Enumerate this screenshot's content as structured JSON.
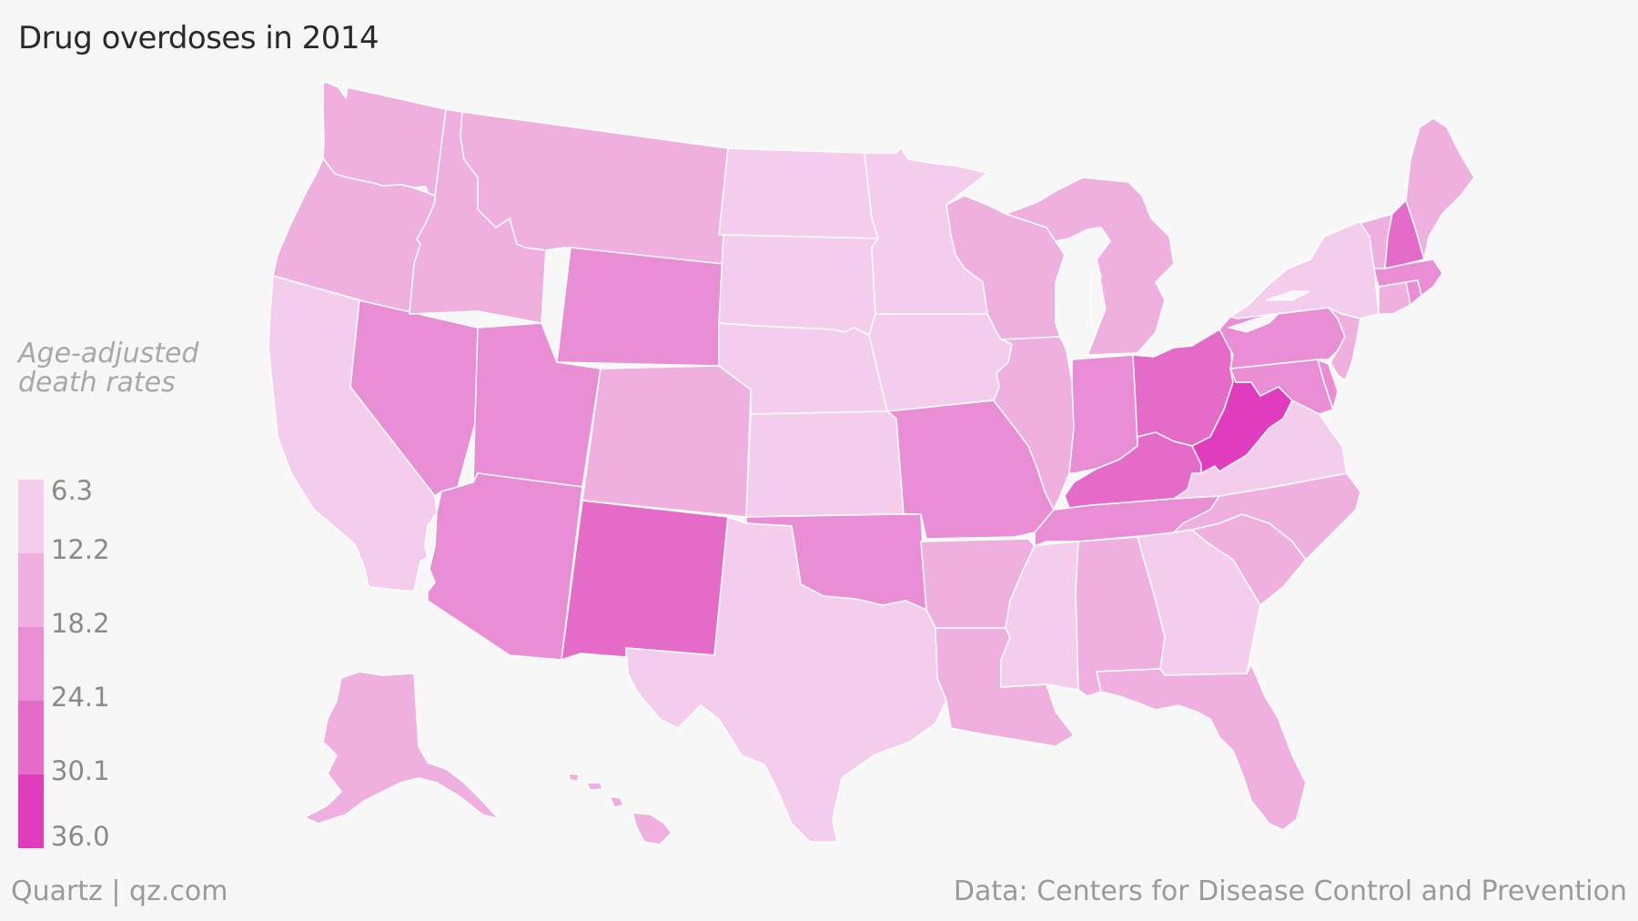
{
  "title": "Drug overdoses in 2014",
  "legend": {
    "title_line1": "Age-adjusted",
    "title_line2": "death rates",
    "breaks": [
      "6.3",
      "12.2",
      "18.2",
      "24.1",
      "30.1",
      "36.0"
    ],
    "colors": [
      "#f5cdec",
      "#efb0e0",
      "#e98ed4",
      "#e46cc8",
      "#df3dbd"
    ]
  },
  "footer": {
    "source_left": "Quartz | qz.com",
    "source_right": "Data: Centers for Disease Control and Prevention"
  },
  "colors": {
    "c1": "#f5cdec",
    "c2": "#efb0e0",
    "c3": "#e98ed4",
    "c4": "#e46cc8",
    "c5": "#df3dbd"
  },
  "chart_data": {
    "type": "choropleth",
    "region": "United States",
    "year": "2014",
    "bin_edges": [
      6.3,
      12.2,
      18.2,
      24.1,
      30.1,
      36.0
    ],
    "states": [
      {
        "state": "WA",
        "bin": 2
      },
      {
        "state": "OR",
        "bin": 2
      },
      {
        "state": "CA",
        "bin": 1
      },
      {
        "state": "NV",
        "bin": 3
      },
      {
        "state": "ID",
        "bin": 2
      },
      {
        "state": "MT",
        "bin": 2
      },
      {
        "state": "WY",
        "bin": 3
      },
      {
        "state": "UT",
        "bin": 3
      },
      {
        "state": "AZ",
        "bin": 3
      },
      {
        "state": "CO",
        "bin": 2
      },
      {
        "state": "NM",
        "bin": 4
      },
      {
        "state": "ND",
        "bin": 1
      },
      {
        "state": "SD",
        "bin": 1
      },
      {
        "state": "NE",
        "bin": 1
      },
      {
        "state": "KS",
        "bin": 1
      },
      {
        "state": "OK",
        "bin": 3
      },
      {
        "state": "TX",
        "bin": 1
      },
      {
        "state": "MN",
        "bin": 1
      },
      {
        "state": "IA",
        "bin": 1
      },
      {
        "state": "MO",
        "bin": 3
      },
      {
        "state": "AR",
        "bin": 2
      },
      {
        "state": "LA",
        "bin": 2
      },
      {
        "state": "WI",
        "bin": 2
      },
      {
        "state": "IL",
        "bin": 2
      },
      {
        "state": "MI",
        "bin": 2
      },
      {
        "state": "IN",
        "bin": 3
      },
      {
        "state": "OH",
        "bin": 4
      },
      {
        "state": "KY",
        "bin": 4
      },
      {
        "state": "TN",
        "bin": 3
      },
      {
        "state": "MS",
        "bin": 1
      },
      {
        "state": "AL",
        "bin": 2
      },
      {
        "state": "GA",
        "bin": 1
      },
      {
        "state": "FL",
        "bin": 2
      },
      {
        "state": "SC",
        "bin": 2
      },
      {
        "state": "NC",
        "bin": 2
      },
      {
        "state": "VA",
        "bin": 1
      },
      {
        "state": "WV",
        "bin": 5
      },
      {
        "state": "MD",
        "bin": 3
      },
      {
        "state": "DE",
        "bin": 3
      },
      {
        "state": "PA",
        "bin": 3
      },
      {
        "state": "NJ",
        "bin": 2
      },
      {
        "state": "NY",
        "bin": 1
      },
      {
        "state": "CT",
        "bin": 2
      },
      {
        "state": "RI",
        "bin": 3
      },
      {
        "state": "MA",
        "bin": 3
      },
      {
        "state": "VT",
        "bin": 2
      },
      {
        "state": "NH",
        "bin": 4
      },
      {
        "state": "ME",
        "bin": 2
      },
      {
        "state": "AK",
        "bin": 2
      },
      {
        "state": "HI",
        "bin": 2
      }
    ]
  }
}
